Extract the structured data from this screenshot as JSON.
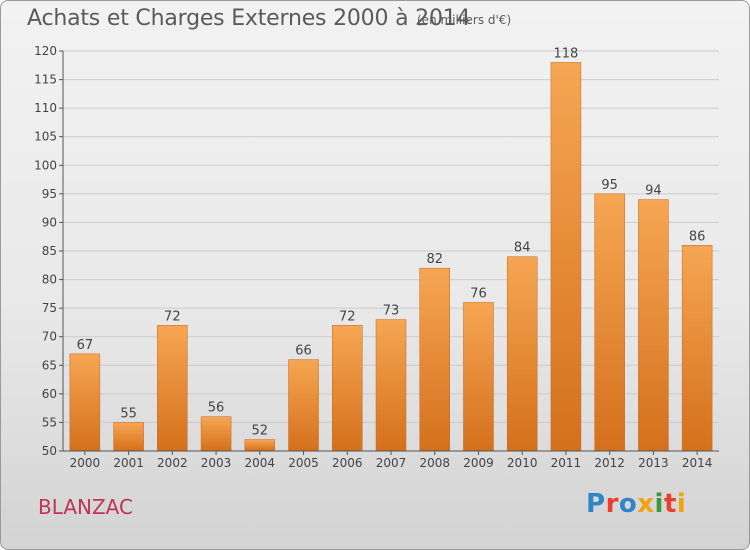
{
  "header": {
    "title": "Achats et Charges Externes 2000 à 2014",
    "unit": "(en milliers d'€)"
  },
  "footer": {
    "commune": "BLANZAC",
    "logo_text": "Proxiti",
    "logo_colors": [
      "#2e86c9",
      "#e8402b",
      "#2e86c9",
      "#f2a20c",
      "#3a9a3a",
      "#e8402b",
      "#f2a20c"
    ]
  },
  "colors": {
    "bar_top": "#f6a653",
    "bar_bottom": "#d4701c",
    "grid": "#cccccc",
    "axis": "#555555",
    "title": "#5a5a5a",
    "commune": "#c0335a"
  },
  "chart_data": {
    "type": "bar",
    "categories": [
      "2000",
      "2001",
      "2002",
      "2003",
      "2004",
      "2005",
      "2006",
      "2007",
      "2008",
      "2009",
      "2010",
      "2011",
      "2012",
      "2013",
      "2014"
    ],
    "values": [
      67,
      55,
      72,
      56,
      52,
      66,
      72,
      73,
      82,
      76,
      84,
      118,
      95,
      94,
      86
    ],
    "title": "Achats et Charges Externes 2000 à 2014",
    "xlabel": "",
    "ylabel": "",
    "ylim": [
      50,
      120
    ],
    "yticks": [
      50,
      55,
      60,
      65,
      70,
      75,
      80,
      85,
      90,
      95,
      100,
      105,
      110,
      115,
      120
    ],
    "grid": true,
    "data_labels": true
  }
}
